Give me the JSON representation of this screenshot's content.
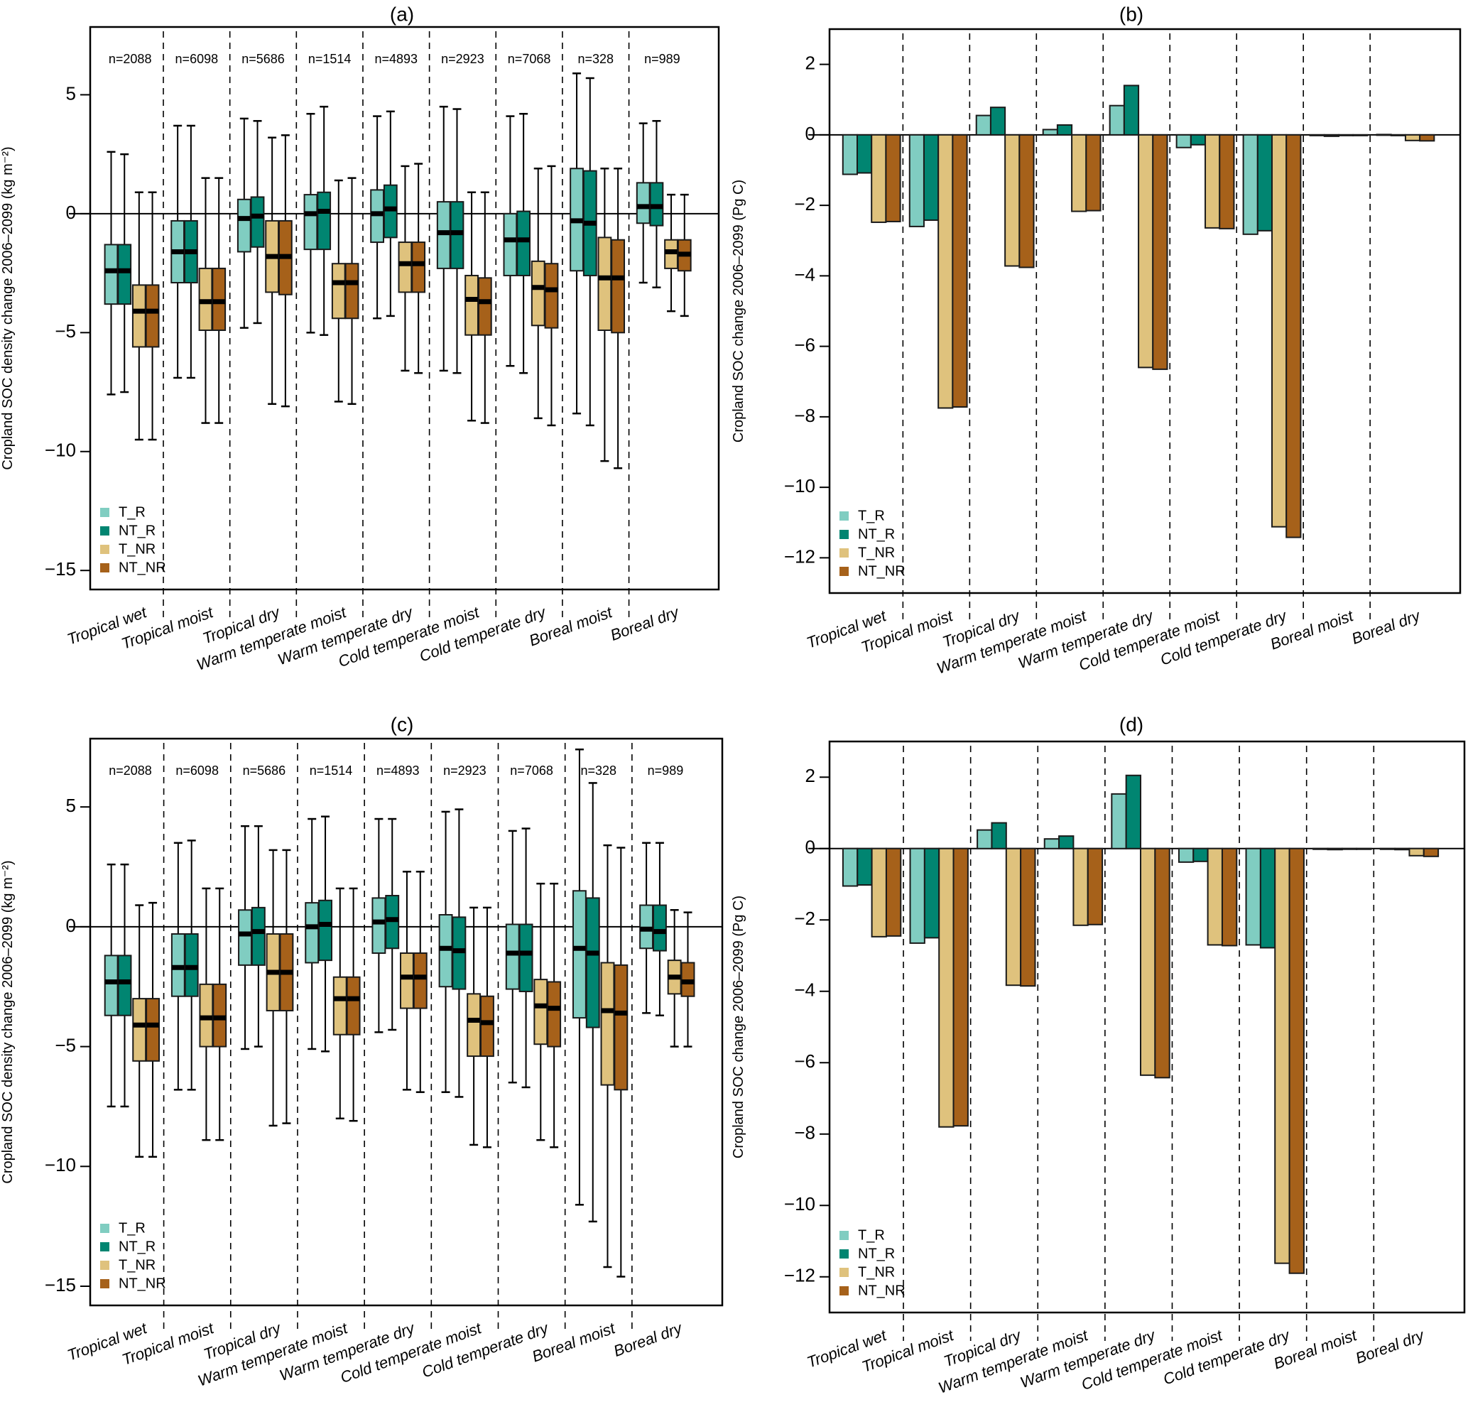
{
  "figure": {
    "legend": [
      {
        "key": "T_R",
        "label": "T_R",
        "color": "#80CDC1"
      },
      {
        "key": "NT_R",
        "label": "NT_R",
        "color": "#018571"
      },
      {
        "key": "T_NR",
        "label": "T_NR",
        "color": "#DFC27D"
      },
      {
        "key": "NT_NR",
        "label": "NT_NR",
        "color": "#A6611A"
      }
    ],
    "categories": [
      "Tropical wet",
      "Tropical moist",
      "Tropical dry",
      "Warm temperate moist",
      "Warm temperate dry",
      "Cold temperate moist",
      "Cold temperate dry",
      "Boreal moist",
      "Boreal dry"
    ],
    "n_labels": [
      "n=2088",
      "n=6098",
      "n=5686",
      "n=1514",
      "n=4893",
      "n=2923",
      "n=7068",
      "n=328",
      "n=989"
    ]
  },
  "chart_data": [
    {
      "id": "a",
      "type": "boxplot",
      "title": "(a)",
      "ylabel": "Cropland SOC density change 2006–2099 (kg m⁻²)",
      "ylim": [
        -15.8,
        7.85
      ],
      "yticks": [
        5,
        0,
        -5,
        -10,
        -15
      ],
      "legend_position": "bottom-left",
      "reference_line": 0,
      "series_order": [
        "T_R",
        "NT_R",
        "T_NR",
        "NT_NR"
      ],
      "boxes": [
        [
          [
            2.6,
            -1.3,
            -2.4,
            -3.8,
            -7.6
          ],
          [
            2.5,
            -1.3,
            -2.4,
            -3.8,
            -7.5
          ],
          [
            0.9,
            -3.0,
            -4.1,
            -5.6,
            -9.5
          ],
          [
            0.9,
            -3.0,
            -4.1,
            -5.6,
            -9.5
          ]
        ],
        [
          [
            3.7,
            -0.3,
            -1.6,
            -2.9,
            -6.9
          ],
          [
            3.7,
            -0.3,
            -1.6,
            -2.9,
            -6.9
          ],
          [
            1.5,
            -2.3,
            -3.7,
            -4.9,
            -8.8
          ],
          [
            1.5,
            -2.3,
            -3.7,
            -4.9,
            -8.8
          ]
        ],
        [
          [
            4.0,
            0.6,
            -0.2,
            -1.6,
            -4.8
          ],
          [
            3.9,
            0.7,
            -0.1,
            -1.4,
            -4.6
          ],
          [
            3.2,
            -0.3,
            -1.8,
            -3.3,
            -8.0
          ],
          [
            3.3,
            -0.3,
            -1.8,
            -3.4,
            -8.1
          ]
        ],
        [
          [
            4.2,
            0.8,
            0.0,
            -1.5,
            -5.0
          ],
          [
            4.5,
            0.9,
            0.1,
            -1.5,
            -5.1
          ],
          [
            1.4,
            -2.1,
            -2.9,
            -4.4,
            -7.9
          ],
          [
            1.5,
            -2.1,
            -2.9,
            -4.4,
            -8.0
          ]
        ],
        [
          [
            4.1,
            1.0,
            0.0,
            -1.2,
            -4.4
          ],
          [
            4.3,
            1.2,
            0.2,
            -1.0,
            -4.3
          ],
          [
            2.0,
            -1.2,
            -2.1,
            -3.3,
            -6.6
          ],
          [
            2.1,
            -1.2,
            -2.1,
            -3.3,
            -6.7
          ]
        ],
        [
          [
            4.5,
            0.5,
            -0.8,
            -2.3,
            -6.6
          ],
          [
            4.4,
            0.5,
            -0.8,
            -2.3,
            -6.7
          ],
          [
            0.9,
            -2.6,
            -3.6,
            -5.1,
            -8.7
          ],
          [
            0.9,
            -2.7,
            -3.7,
            -5.1,
            -8.8
          ]
        ],
        [
          [
            4.1,
            0.0,
            -1.1,
            -2.6,
            -6.4
          ],
          [
            4.2,
            0.1,
            -1.1,
            -2.6,
            -6.7
          ],
          [
            1.9,
            -2.0,
            -3.1,
            -4.7,
            -8.6
          ],
          [
            2.0,
            -2.1,
            -3.2,
            -4.8,
            -8.9
          ]
        ],
        [
          [
            5.9,
            1.9,
            -0.3,
            -2.4,
            -8.4
          ],
          [
            5.7,
            1.8,
            -0.4,
            -2.6,
            -8.9
          ],
          [
            1.9,
            -1.0,
            -2.7,
            -4.9,
            -10.4
          ],
          [
            1.9,
            -1.1,
            -2.7,
            -5.0,
            -10.7
          ]
        ],
        [
          [
            3.8,
            1.3,
            0.3,
            -0.4,
            -2.9
          ],
          [
            3.9,
            1.3,
            0.3,
            -0.5,
            -3.1
          ],
          [
            0.8,
            -1.1,
            -1.6,
            -2.3,
            -4.1
          ],
          [
            0.8,
            -1.1,
            -1.7,
            -2.4,
            -4.3
          ]
        ]
      ]
    },
    {
      "id": "b",
      "type": "bar",
      "title": "(b)",
      "ylabel": "Cropland SOC change 2006–2099 (Pg C)",
      "ylim": [
        -13.0,
        3.0
      ],
      "yticks": [
        2,
        0,
        -2,
        -4,
        -6,
        -8,
        -10,
        -12
      ],
      "legend_position": "bottom-left",
      "reference_line": 0,
      "series": [
        {
          "name": "T_R",
          "values": [
            -1.12,
            -2.6,
            0.55,
            0.15,
            0.83,
            -0.36,
            -2.82,
            -0.02,
            0.01
          ]
        },
        {
          "name": "NT_R",
          "values": [
            -1.08,
            -2.42,
            0.78,
            0.28,
            1.4,
            -0.28,
            -2.72,
            -0.04,
            0.0
          ]
        },
        {
          "name": "T_NR",
          "values": [
            -2.48,
            -7.75,
            -3.72,
            -2.17,
            -6.6,
            -2.64,
            -11.12,
            0.0,
            -0.16
          ]
        },
        {
          "name": "NT_NR",
          "values": [
            -2.46,
            -7.72,
            -3.76,
            -2.15,
            -6.65,
            -2.66,
            -11.42,
            0.0,
            -0.17
          ]
        }
      ]
    },
    {
      "id": "c",
      "type": "boxplot",
      "title": "(c)",
      "ylabel": "Cropland SOC density change 2006–2099 (kg m⁻²)",
      "ylim": [
        -15.8,
        7.85
      ],
      "yticks": [
        5,
        0,
        -5,
        -10,
        -15
      ],
      "legend_position": "bottom-left",
      "reference_line": 0,
      "series_order": [
        "T_R",
        "NT_R",
        "T_NR",
        "NT_NR"
      ],
      "boxes": [
        [
          [
            2.6,
            -1.2,
            -2.3,
            -3.7,
            -7.5
          ],
          [
            2.6,
            -1.2,
            -2.3,
            -3.7,
            -7.5
          ],
          [
            0.9,
            -3.0,
            -4.1,
            -5.6,
            -9.6
          ],
          [
            1.0,
            -3.0,
            -4.1,
            -5.6,
            -9.6
          ]
        ],
        [
          [
            3.5,
            -0.3,
            -1.7,
            -2.9,
            -6.8
          ],
          [
            3.6,
            -0.3,
            -1.7,
            -2.9,
            -6.8
          ],
          [
            1.6,
            -2.4,
            -3.8,
            -5.0,
            -8.9
          ],
          [
            1.6,
            -2.4,
            -3.8,
            -5.0,
            -8.9
          ]
        ],
        [
          [
            4.2,
            0.7,
            -0.3,
            -1.6,
            -5.1
          ],
          [
            4.2,
            0.8,
            -0.2,
            -1.6,
            -5.0
          ],
          [
            3.2,
            -0.3,
            -1.9,
            -3.5,
            -8.3
          ],
          [
            3.2,
            -0.3,
            -1.9,
            -3.5,
            -8.2
          ]
        ],
        [
          [
            4.5,
            1.0,
            0.0,
            -1.5,
            -5.1
          ],
          [
            4.6,
            1.1,
            0.1,
            -1.4,
            -5.2
          ],
          [
            1.6,
            -2.1,
            -3.0,
            -4.5,
            -8.0
          ],
          [
            1.6,
            -2.1,
            -3.0,
            -4.5,
            -8.1
          ]
        ],
        [
          [
            4.5,
            1.2,
            0.2,
            -1.1,
            -4.4
          ],
          [
            4.5,
            1.3,
            0.3,
            -0.9,
            -4.3
          ],
          [
            2.3,
            -1.1,
            -2.1,
            -3.4,
            -6.8
          ],
          [
            2.3,
            -1.1,
            -2.1,
            -3.4,
            -6.9
          ]
        ],
        [
          [
            4.8,
            0.5,
            -0.9,
            -2.5,
            -6.9
          ],
          [
            4.9,
            0.4,
            -1.0,
            -2.6,
            -7.1
          ],
          [
            0.8,
            -2.8,
            -3.9,
            -5.4,
            -9.1
          ],
          [
            0.8,
            -2.9,
            -4.0,
            -5.4,
            -9.2
          ]
        ],
        [
          [
            4.0,
            0.1,
            -1.1,
            -2.6,
            -6.5
          ],
          [
            4.1,
            0.1,
            -1.1,
            -2.7,
            -6.7
          ],
          [
            1.8,
            -2.2,
            -3.3,
            -4.9,
            -8.9
          ],
          [
            1.8,
            -2.3,
            -3.4,
            -5.0,
            -9.2
          ]
        ],
        [
          [
            7.4,
            1.5,
            -0.9,
            -3.8,
            -11.6
          ],
          [
            6.0,
            1.2,
            -1.1,
            -4.2,
            -12.3
          ],
          [
            3.4,
            -1.5,
            -3.5,
            -6.6,
            -14.2
          ],
          [
            3.3,
            -1.6,
            -3.6,
            -6.8,
            -14.6
          ]
        ],
        [
          [
            3.5,
            0.9,
            -0.1,
            -0.9,
            -3.6
          ],
          [
            3.5,
            0.9,
            -0.2,
            -1.0,
            -3.7
          ],
          [
            0.7,
            -1.4,
            -2.1,
            -2.8,
            -5.0
          ],
          [
            0.6,
            -1.5,
            -2.3,
            -2.9,
            -5.0
          ]
        ]
      ]
    },
    {
      "id": "d",
      "type": "bar",
      "title": "(d)",
      "ylabel": "Cropland SOC change 2006–2099 (Pg C)",
      "ylim": [
        -13.0,
        3.0
      ],
      "yticks": [
        2,
        0,
        -2,
        -4,
        -6,
        -8,
        -10,
        -12
      ],
      "legend_position": "bottom-left",
      "reference_line": 0,
      "series": [
        {
          "name": "T_R",
          "values": [
            -1.05,
            -2.65,
            0.52,
            0.27,
            1.53,
            -0.38,
            -2.7,
            -0.01,
            -0.02
          ]
        },
        {
          "name": "NT_R",
          "values": [
            -1.02,
            -2.5,
            0.72,
            0.35,
            2.05,
            -0.36,
            -2.78,
            -0.03,
            -0.03
          ]
        },
        {
          "name": "T_NR",
          "values": [
            -2.47,
            -7.8,
            -3.83,
            -2.15,
            -6.35,
            -2.7,
            -11.62,
            0.0,
            -0.2
          ]
        },
        {
          "name": "NT_NR",
          "values": [
            -2.45,
            -7.77,
            -3.85,
            -2.13,
            -6.42,
            -2.72,
            -11.9,
            0.0,
            -0.22
          ]
        }
      ]
    }
  ]
}
